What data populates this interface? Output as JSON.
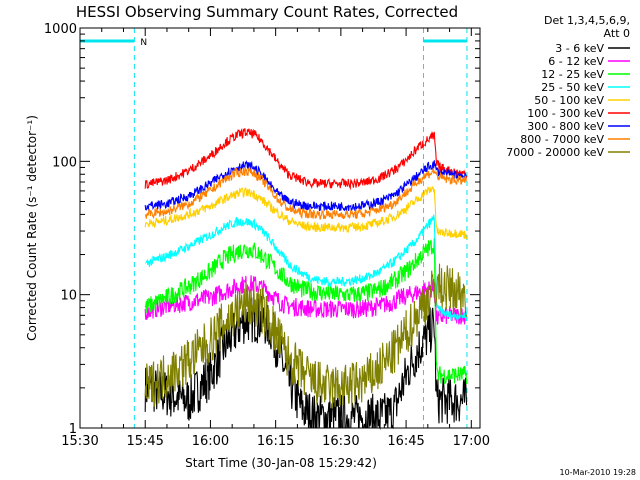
{
  "chart_data": {
    "type": "line",
    "title": "HESSI Observing Summary Count Rates, Corrected",
    "xlabel": "Start Time (30-Jan-08 15:29:42)",
    "ylabel": "Corrected Count Rate (s⁻¹ detector⁻¹)",
    "yscale": "log",
    "ylim": [
      1,
      1000
    ],
    "xlim_minutes": [
      0,
      92
    ],
    "x_ticks": [
      {
        "minute": 0,
        "label": "15:30"
      },
      {
        "minute": 15,
        "label": "15:45"
      },
      {
        "minute": 30,
        "label": "16:00"
      },
      {
        "minute": 45,
        "label": "16:15"
      },
      {
        "minute": 60,
        "label": "16:30"
      },
      {
        "minute": 75,
        "label": "16:45"
      },
      {
        "minute": 90,
        "label": "17:00"
      }
    ],
    "y_ticks": [
      {
        "value": 1,
        "label": "1"
      },
      {
        "value": 10,
        "label": "10"
      },
      {
        "value": 100,
        "label": "100"
      },
      {
        "value": 1000,
        "label": "1000"
      }
    ],
    "legend": {
      "position": "right",
      "header": [
        "Det 1,3,4,5,6,9,",
        "Att 0"
      ]
    },
    "intervals": [
      {
        "label": "N",
        "start": 0,
        "end": 12.5,
        "color": "#00e5ee"
      },
      {
        "label": "",
        "start": 79,
        "end": 89,
        "color": "#00e5ee"
      }
    ],
    "vlines": [
      0,
      12.5,
      79,
      89
    ],
    "time_minutes": [
      15,
      20,
      25,
      30,
      33,
      36,
      38,
      40,
      42,
      44,
      46,
      48,
      51,
      54,
      57,
      60,
      63,
      66,
      69,
      72,
      74,
      76,
      78,
      80,
      81.5,
      82,
      83,
      85,
      87,
      89
    ],
    "series": [
      {
        "name": "3 - 6 keV",
        "color": "#000000",
        "values": [
          2,
          1.8,
          1.6,
          2.5,
          4,
          5.5,
          6.5,
          6.5,
          6.5,
          5.5,
          3.5,
          2.2,
          1.4,
          1.2,
          1.2,
          1.2,
          1.2,
          1.2,
          1.2,
          1.3,
          2,
          3,
          4,
          5,
          6,
          1.6,
          1.6,
          1.6,
          1.6,
          1.6
        ]
      },
      {
        "name": "6 - 12 keV",
        "color": "#ff00ff",
        "values": [
          7.5,
          8.2,
          8.8,
          9.5,
          10.5,
          11.5,
          12,
          12,
          11.2,
          10,
          8.8,
          8.2,
          8,
          7.8,
          7.8,
          7.8,
          7.8,
          7.9,
          8.2,
          8.8,
          9.5,
          10,
          10.5,
          11,
          11,
          6.5,
          6.8,
          7,
          7,
          7
        ]
      },
      {
        "name": "12 - 25 keV",
        "color": "#00ff00",
        "values": [
          8,
          9.5,
          11.5,
          15,
          18.5,
          21,
          22,
          21.5,
          19.5,
          17,
          14.5,
          12.5,
          11,
          10.5,
          10.2,
          10,
          10,
          10.3,
          11,
          12.5,
          14,
          16,
          19,
          22,
          24,
          2.5,
          2.5,
          2.5,
          2.5,
          2.5
        ]
      },
      {
        "name": "25 - 50 keV",
        "color": "#00ffff",
        "values": [
          17,
          19.5,
          23,
          28,
          32,
          35,
          35.5,
          34,
          30,
          25,
          20.5,
          17,
          14.5,
          13,
          12.5,
          12.5,
          12.8,
          13.5,
          15,
          17.5,
          20,
          23,
          27,
          33,
          38,
          8,
          7.5,
          7,
          7,
          7
        ]
      },
      {
        "name": "50 - 100 keV",
        "color": "#ffd000",
        "values": [
          34,
          36,
          40,
          46,
          52,
          57,
          59,
          57,
          51,
          45,
          40,
          36,
          33,
          32,
          32,
          32,
          32,
          33,
          35,
          38,
          42,
          47,
          53,
          60,
          63,
          30,
          29,
          29,
          29,
          28
        ]
      },
      {
        "name": "100 - 300 keV",
        "color": "#ff0000",
        "values": [
          67,
          72,
          85,
          110,
          135,
          157,
          165,
          160,
          140,
          115,
          93,
          80,
          72,
          68,
          68,
          68,
          68,
          70,
          75,
          85,
          95,
          110,
          130,
          145,
          155,
          95,
          90,
          85,
          82,
          80
        ]
      },
      {
        "name": "300 - 800 keV",
        "color": "#0000ff",
        "values": [
          46,
          48,
          55,
          68,
          80,
          90,
          93,
          90,
          78,
          65,
          55,
          50,
          47,
          46,
          46,
          46,
          46,
          47,
          50,
          55,
          62,
          70,
          80,
          90,
          96,
          85,
          82,
          80,
          78,
          78
        ]
      },
      {
        "name": "800 - 7000 keV",
        "color": "#ff8000",
        "values": [
          40,
          42,
          48,
          60,
          72,
          82,
          85,
          82,
          72,
          60,
          50,
          44,
          41,
          40,
          40,
          40,
          40,
          41,
          44,
          48,
          55,
          62,
          72,
          80,
          85,
          78,
          75,
          73,
          72,
          72
        ]
      },
      {
        "name": "7000 - 20000 keV",
        "color": "#808000",
        "values": [
          2,
          2.5,
          3.2,
          4.5,
          6,
          7.5,
          8.5,
          8.5,
          7.5,
          6,
          4.5,
          3.3,
          2.6,
          2.2,
          2,
          2,
          2.1,
          2.3,
          2.8,
          3.6,
          4.5,
          5.8,
          7.5,
          9.5,
          11,
          12,
          11.5,
          11,
          10.5,
          10
        ]
      }
    ]
  },
  "footer": {
    "date_stamp": "10-Mar-2010 19:28"
  }
}
